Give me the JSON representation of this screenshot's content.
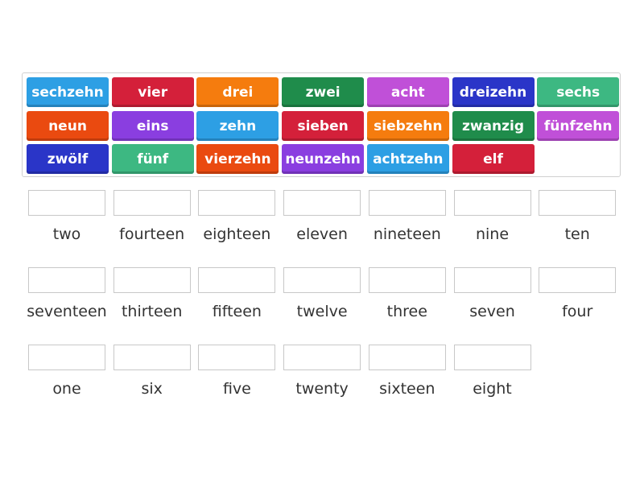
{
  "tiles": [
    {
      "label": "sechzehn",
      "color": "#2d9fe4"
    },
    {
      "label": "vier",
      "color": "#d4203a"
    },
    {
      "label": "drei",
      "color": "#f57c0e"
    },
    {
      "label": "zwei",
      "color": "#1f8c4b"
    },
    {
      "label": "acht",
      "color": "#c050d8"
    },
    {
      "label": "dreizehn",
      "color": "#2a35c8"
    },
    {
      "label": "sechs",
      "color": "#3db882"
    },
    {
      "label": "neun",
      "color": "#ea4a10"
    },
    {
      "label": "eins",
      "color": "#8a3ee0"
    },
    {
      "label": "zehn",
      "color": "#2d9fe4"
    },
    {
      "label": "sieben",
      "color": "#d4203a"
    },
    {
      "label": "siebzehn",
      "color": "#f57c0e"
    },
    {
      "label": "zwanzig",
      "color": "#1f8c4b"
    },
    {
      "label": "fünfzehn",
      "color": "#c050d8"
    },
    {
      "label": "zwölf",
      "color": "#2a35c8"
    },
    {
      "label": "fünf",
      "color": "#3db882"
    },
    {
      "label": "vierzehn",
      "color": "#ea4a10"
    },
    {
      "label": "neunzehn",
      "color": "#8a3ee0"
    },
    {
      "label": "achtzehn",
      "color": "#2d9fe4"
    },
    {
      "label": "elf",
      "color": "#d4203a"
    }
  ],
  "targets": [
    "two",
    "fourteen",
    "eighteen",
    "eleven",
    "nineteen",
    "nine",
    "ten",
    "seventeen",
    "thirteen",
    "fifteen",
    "twelve",
    "three",
    "seven",
    "four",
    "one",
    "six",
    "five",
    "twenty",
    "sixteen",
    "eight"
  ]
}
